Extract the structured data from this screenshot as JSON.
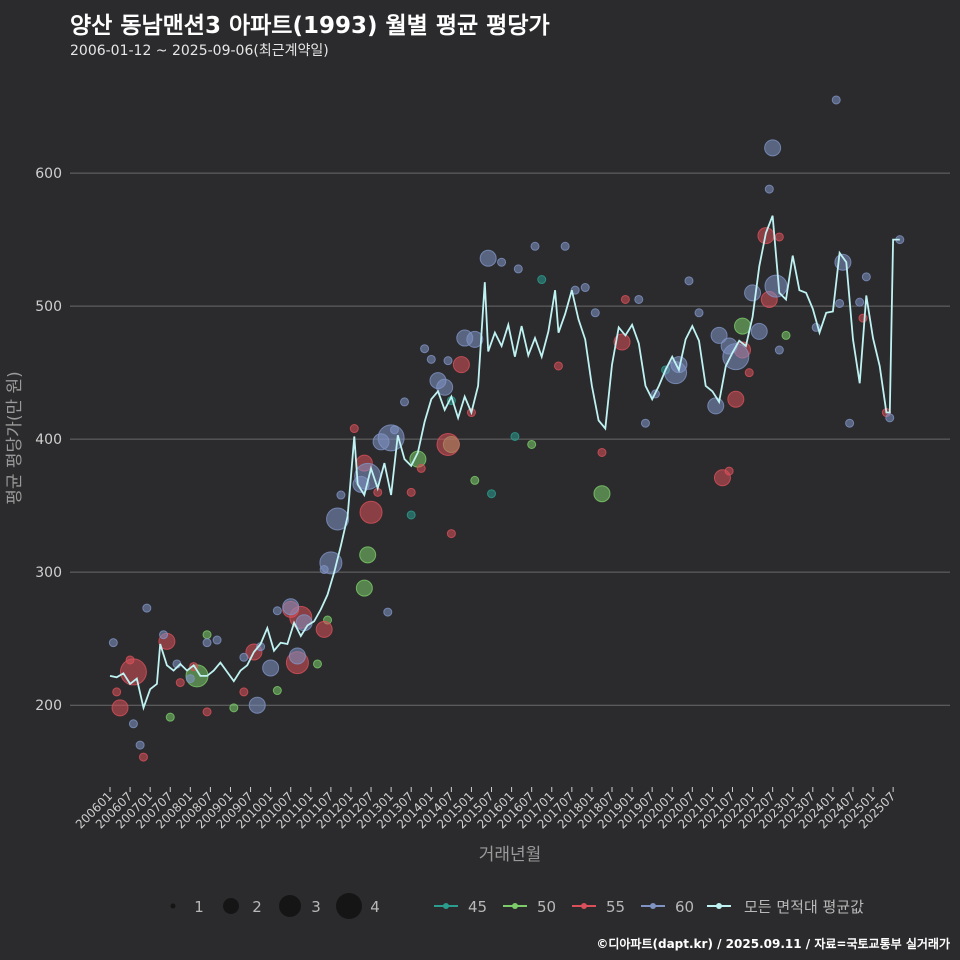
{
  "header": {
    "title": "양산 동남맨션3 아파트(1993) 월별 평균 평당가",
    "subtitle": "2006-01-12 ~ 2025-09-06(최근계약일)"
  },
  "footer": {
    "credit": "©디아파트(dapt.kr) / 2025.09.11 / 자료=국토교통부 실거래가"
  },
  "legend": {
    "size_items": [
      "1",
      "2",
      "3",
      "4"
    ],
    "area_items": [
      "45",
      "50",
      "55",
      "60"
    ],
    "avg_label": "모든 면적대 평균값"
  },
  "colors": {
    "background": "#2b2b2d",
    "grid": "#6a6a6a",
    "avg_line": "#bff2f2",
    "area_45": "#2a9d8f",
    "area_50": "#7ccd6a",
    "area_55": "#d9505a",
    "area_60": "#7f93c4"
  },
  "chart_data": {
    "type": "scatter",
    "title": "양산 동남맨션3 아파트(1993) 월별 평균 평당가",
    "xlabel": "거래년월",
    "ylabel": "평균 평당가(만 원)",
    "ylim": [
      140,
      670
    ],
    "yticks": [
      200,
      300,
      400,
      500,
      600
    ],
    "grid": true,
    "legend_position": "bottom",
    "x_ticks": [
      "200601",
      "200607",
      "200701",
      "200707",
      "200801",
      "200807",
      "200901",
      "200907",
      "201001",
      "201007",
      "201101",
      "201107",
      "201201",
      "201207",
      "201301",
      "201307",
      "201401",
      "201407",
      "201501",
      "201507",
      "201601",
      "201607",
      "201701",
      "201707",
      "201801",
      "201807",
      "201901",
      "201907",
      "202001",
      "202007",
      "202101",
      "202107",
      "202201",
      "202207",
      "202301",
      "202307",
      "202401",
      "202407",
      "202501",
      "202507"
    ],
    "avg_series": {
      "name": "모든 면적대 평균값",
      "points": [
        [
          "2006-01",
          222
        ],
        [
          "2006-03",
          221
        ],
        [
          "2006-05",
          224
        ],
        [
          "2006-07",
          216
        ],
        [
          "2006-09",
          220
        ],
        [
          "2006-11",
          198
        ],
        [
          "2007-01",
          212
        ],
        [
          "2007-03",
          216
        ],
        [
          "2007-04",
          246
        ],
        [
          "2007-06",
          230
        ],
        [
          "2007-08",
          226
        ],
        [
          "2007-10",
          231
        ],
        [
          "2007-12",
          226
        ],
        [
          "2008-02",
          230
        ],
        [
          "2008-04",
          222
        ],
        [
          "2008-06",
          222
        ],
        [
          "2008-08",
          226
        ],
        [
          "2008-10",
          232
        ],
        [
          "2008-12",
          225
        ],
        [
          "2009-02",
          218
        ],
        [
          "2009-04",
          226
        ],
        [
          "2009-06",
          230
        ],
        [
          "2009-08",
          240
        ],
        [
          "2009-10",
          246
        ],
        [
          "2009-12",
          258
        ],
        [
          "2010-02",
          241
        ],
        [
          "2010-04",
          247
        ],
        [
          "2010-06",
          246
        ],
        [
          "2010-08",
          262
        ],
        [
          "2010-10",
          252
        ],
        [
          "2010-12",
          260
        ],
        [
          "2011-02",
          263
        ],
        [
          "2011-04",
          272
        ],
        [
          "2011-06",
          283
        ],
        [
          "2011-08",
          300
        ],
        [
          "2011-10",
          320
        ],
        [
          "2011-12",
          342
        ],
        [
          "2012-02",
          402
        ],
        [
          "2012-03",
          366
        ],
        [
          "2012-05",
          358
        ],
        [
          "2012-07",
          378
        ],
        [
          "2012-09",
          363
        ],
        [
          "2012-11",
          382
        ],
        [
          "2013-01",
          358
        ],
        [
          "2013-03",
          403
        ],
        [
          "2013-05",
          385
        ],
        [
          "2013-07",
          380
        ],
        [
          "2013-09",
          390
        ],
        [
          "2013-11",
          413
        ],
        [
          "2014-01",
          430
        ],
        [
          "2014-03",
          436
        ],
        [
          "2014-05",
          422
        ],
        [
          "2014-07",
          432
        ],
        [
          "2014-09",
          416
        ],
        [
          "2014-11",
          432
        ],
        [
          "2015-01",
          420
        ],
        [
          "2015-03",
          440
        ],
        [
          "2015-05",
          518
        ],
        [
          "2015-06",
          466
        ],
        [
          "2015-08",
          480
        ],
        [
          "2015-10",
          470
        ],
        [
          "2015-12",
          486
        ],
        [
          "2016-02",
          462
        ],
        [
          "2016-04",
          485
        ],
        [
          "2016-06",
          463
        ],
        [
          "2016-08",
          476
        ],
        [
          "2016-10",
          462
        ],
        [
          "2016-12",
          481
        ],
        [
          "2017-02",
          512
        ],
        [
          "2017-03",
          480
        ],
        [
          "2017-05",
          494
        ],
        [
          "2017-07",
          512
        ],
        [
          "2017-09",
          490
        ],
        [
          "2017-11",
          475
        ],
        [
          "2018-01",
          440
        ],
        [
          "2018-03",
          414
        ],
        [
          "2018-05",
          408
        ],
        [
          "2018-07",
          456
        ],
        [
          "2018-09",
          484
        ],
        [
          "2018-11",
          478
        ],
        [
          "2019-01",
          486
        ],
        [
          "2019-03",
          472
        ],
        [
          "2019-05",
          440
        ],
        [
          "2019-07",
          430
        ],
        [
          "2019-09",
          440
        ],
        [
          "2019-11",
          452
        ],
        [
          "2020-01",
          462
        ],
        [
          "2020-03",
          452
        ],
        [
          "2020-05",
          475
        ],
        [
          "2020-07",
          485
        ],
        [
          "2020-09",
          474
        ],
        [
          "2020-11",
          440
        ],
        [
          "2021-01",
          436
        ],
        [
          "2021-03",
          428
        ],
        [
          "2021-05",
          455
        ],
        [
          "2021-07",
          465
        ],
        [
          "2021-09",
          474
        ],
        [
          "2021-11",
          470
        ],
        [
          "2022-01",
          492
        ],
        [
          "2022-03",
          530
        ],
        [
          "2022-05",
          555
        ],
        [
          "2022-07",
          568
        ],
        [
          "2022-09",
          510
        ],
        [
          "2022-11",
          505
        ],
        [
          "2023-01",
          538
        ],
        [
          "2023-03",
          512
        ],
        [
          "2023-05",
          510
        ],
        [
          "2023-07",
          498
        ],
        [
          "2023-09",
          480
        ],
        [
          "2023-11",
          495
        ],
        [
          "2024-01",
          496
        ],
        [
          "2024-03",
          540
        ],
        [
          "2024-05",
          533
        ],
        [
          "2024-07",
          475
        ],
        [
          "2024-09",
          442
        ],
        [
          "2024-11",
          508
        ],
        [
          "2025-01",
          476
        ],
        [
          "2025-03",
          455
        ],
        [
          "2025-05",
          420
        ],
        [
          "2025-06",
          420
        ],
        [
          "2025-07",
          550
        ],
        [
          "2025-09",
          550
        ]
      ]
    },
    "scatter_series": [
      {
        "name": "45",
        "points": [
          [
            "2013-07",
            343,
            1
          ],
          [
            "2014-07",
            429,
            1
          ],
          [
            "2015-07",
            359,
            1
          ],
          [
            "2016-02",
            402,
            1
          ],
          [
            "2016-10",
            520,
            1
          ],
          [
            "2019-11",
            452,
            1
          ]
        ]
      },
      {
        "name": "50",
        "points": [
          [
            "2007-07",
            191,
            1
          ],
          [
            "2008-03",
            222,
            3
          ],
          [
            "2008-06",
            253,
            1
          ],
          [
            "2009-02",
            198,
            1
          ],
          [
            "2010-03",
            211,
            1
          ],
          [
            "2011-03",
            231,
            1
          ],
          [
            "2011-06",
            264,
            1
          ],
          [
            "2012-05",
            288,
            2
          ],
          [
            "2012-06",
            313,
            2
          ],
          [
            "2013-09",
            385,
            2
          ],
          [
            "2014-07",
            396,
            2
          ],
          [
            "2015-02",
            369,
            1
          ],
          [
            "2016-07",
            396,
            1
          ],
          [
            "2018-04",
            359,
            2
          ],
          [
            "2021-10",
            485,
            2
          ],
          [
            "2022-11",
            478,
            1
          ]
        ]
      },
      {
        "name": "55",
        "points": [
          [
            "2006-03",
            210,
            1
          ],
          [
            "2006-04",
            198,
            2
          ],
          [
            "2006-07",
            234,
            1
          ],
          [
            "2006-08",
            225,
            4
          ],
          [
            "2006-11",
            161,
            1
          ],
          [
            "2007-06",
            248,
            2
          ],
          [
            "2007-10",
            217,
            1
          ],
          [
            "2008-02",
            229,
            1
          ],
          [
            "2008-06",
            195,
            1
          ],
          [
            "2009-05",
            210,
            1
          ],
          [
            "2009-08",
            240,
            2
          ],
          [
            "2010-07",
            272,
            2
          ],
          [
            "2010-09",
            232,
            3
          ],
          [
            "2010-10",
            266,
            3
          ],
          [
            "2011-05",
            257,
            2
          ],
          [
            "2012-02",
            408,
            1
          ],
          [
            "2012-05",
            382,
            2
          ],
          [
            "2012-07",
            345,
            3
          ],
          [
            "2012-09",
            360,
            1
          ],
          [
            "2013-07",
            360,
            1
          ],
          [
            "2013-10",
            378,
            1
          ],
          [
            "2014-06",
            396,
            3
          ],
          [
            "2014-07",
            329,
            1
          ],
          [
            "2014-10",
            456,
            2
          ],
          [
            "2015-01",
            420,
            1
          ],
          [
            "2017-03",
            455,
            1
          ],
          [
            "2018-04",
            390,
            1
          ],
          [
            "2018-10",
            473,
            2
          ],
          [
            "2018-11",
            505,
            1
          ],
          [
            "2021-04",
            371,
            2
          ],
          [
            "2021-06",
            376,
            1
          ],
          [
            "2021-08",
            430,
            2
          ],
          [
            "2021-10",
            467,
            2
          ],
          [
            "2021-12",
            450,
            1
          ],
          [
            "2022-05",
            553,
            2
          ],
          [
            "2022-06",
            505,
            2
          ],
          [
            "2022-09",
            552,
            1
          ],
          [
            "2024-10",
            491,
            1
          ],
          [
            "2025-05",
            420,
            1
          ]
        ]
      },
      {
        "name": "60",
        "points": [
          [
            "2006-02",
            247,
            1
          ],
          [
            "2006-08",
            186,
            1
          ],
          [
            "2006-10",
            170,
            1
          ],
          [
            "2006-12",
            273,
            1
          ],
          [
            "2007-05",
            253,
            1
          ],
          [
            "2007-09",
            231,
            1
          ],
          [
            "2008-01",
            220,
            1
          ],
          [
            "2008-06",
            247,
            1
          ],
          [
            "2008-09",
            249,
            1
          ],
          [
            "2009-05",
            236,
            1
          ],
          [
            "2009-09",
            200,
            2
          ],
          [
            "2009-10",
            244,
            1
          ],
          [
            "2010-01",
            228,
            2
          ],
          [
            "2010-03",
            271,
            1
          ],
          [
            "2010-07",
            274,
            2
          ],
          [
            "2010-09",
            237,
            2
          ],
          [
            "2010-11",
            262,
            2
          ],
          [
            "2011-05",
            302,
            1
          ],
          [
            "2011-07",
            307,
            3
          ],
          [
            "2011-09",
            340,
            3
          ],
          [
            "2011-10",
            358,
            1
          ],
          [
            "2012-04",
            366,
            2
          ],
          [
            "2012-06",
            372,
            4
          ],
          [
            "2012-10",
            398,
            2
          ],
          [
            "2012-12",
            270,
            1
          ],
          [
            "2013-01",
            401,
            4
          ],
          [
            "2013-02",
            407,
            1
          ],
          [
            "2013-05",
            428,
            1
          ],
          [
            "2013-11",
            468,
            1
          ],
          [
            "2014-01",
            460,
            1
          ],
          [
            "2014-03",
            444,
            2
          ],
          [
            "2014-05",
            439,
            2
          ],
          [
            "2014-06",
            459,
            1
          ],
          [
            "2014-11",
            476,
            2
          ],
          [
            "2015-02",
            475,
            2
          ],
          [
            "2015-06",
            536,
            2
          ],
          [
            "2015-10",
            533,
            1
          ],
          [
            "2016-03",
            528,
            1
          ],
          [
            "2016-08",
            545,
            1
          ],
          [
            "2017-05",
            545,
            1
          ],
          [
            "2017-08",
            512,
            1
          ],
          [
            "2017-11",
            514,
            1
          ],
          [
            "2018-02",
            495,
            1
          ],
          [
            "2019-03",
            505,
            1
          ],
          [
            "2019-05",
            412,
            1
          ],
          [
            "2019-08",
            434,
            1
          ],
          [
            "2020-02",
            450,
            3
          ],
          [
            "2020-03",
            456,
            2
          ],
          [
            "2020-06",
            519,
            1
          ],
          [
            "2020-09",
            495,
            1
          ],
          [
            "2021-02",
            425,
            2
          ],
          [
            "2021-03",
            478,
            2
          ],
          [
            "2021-06",
            470,
            2
          ],
          [
            "2021-08",
            462,
            4
          ],
          [
            "2022-01",
            510,
            2
          ],
          [
            "2022-03",
            481,
            2
          ],
          [
            "2022-06",
            588,
            1
          ],
          [
            "2022-07",
            619,
            2
          ],
          [
            "2022-08",
            515,
            3
          ],
          [
            "2022-09",
            467,
            1
          ],
          [
            "2023-08",
            484,
            1
          ],
          [
            "2024-02",
            655,
            1
          ],
          [
            "2024-03",
            502,
            1
          ],
          [
            "2024-04",
            533,
            2
          ],
          [
            "2024-06",
            412,
            1
          ],
          [
            "2024-09",
            503,
            1
          ],
          [
            "2024-11",
            522,
            1
          ],
          [
            "2025-06",
            416,
            1
          ],
          [
            "2025-09",
            550,
            1
          ]
        ]
      }
    ]
  }
}
